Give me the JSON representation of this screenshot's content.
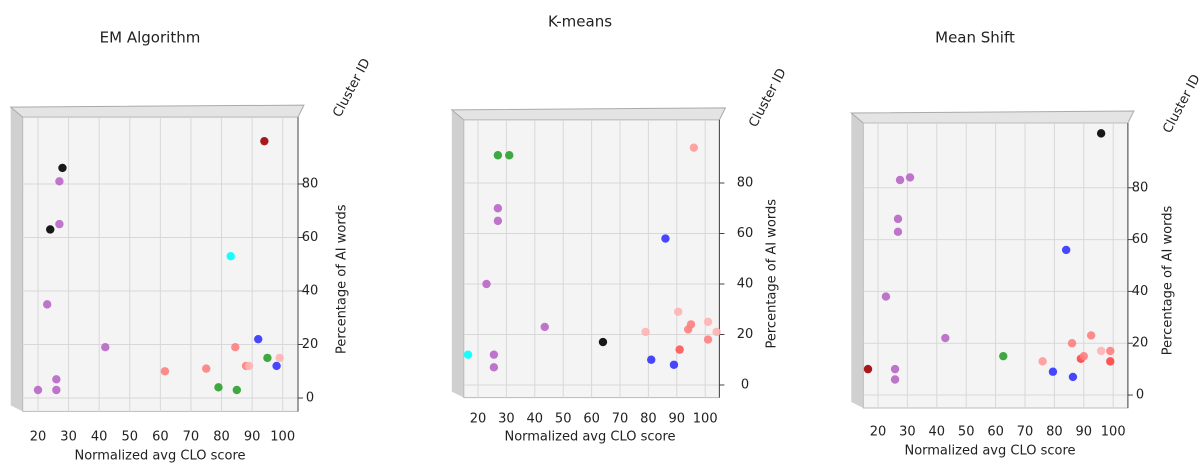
{
  "chart_data": [
    {
      "type": "scatter",
      "title": "EM Algorithm",
      "x_label": "Normalized avg CLO score",
      "y_label": "Percentage of AI words",
      "z_label": "Cluster ID",
      "x": [
        20,
        26,
        26,
        23,
        27,
        27,
        28,
        24,
        42,
        61.5,
        75,
        79,
        85,
        84.5,
        88,
        89,
        92,
        95,
        98,
        99,
        83,
        94
      ],
      "y": [
        3,
        7,
        3,
        35,
        65,
        81,
        86,
        63,
        19,
        10,
        11,
        4,
        3,
        19,
        12,
        12,
        22,
        15,
        12,
        15,
        53,
        96
      ],
      "colors": [
        "#b966c8",
        "#b966c8",
        "#b966c8",
        "#b966c8",
        "#b966c8",
        "#b966c8",
        "#000000",
        "#000000",
        "#b966c8",
        "#ff8080",
        "#ff8080",
        "#2ca02c",
        "#2ca02c",
        "#ff8080",
        "#ff8080",
        "#ffb3b3",
        "#3333ff",
        "#2ca02c",
        "#3333ff",
        "#ffb3b3",
        "#00ffff",
        "#a00000"
      ],
      "xlim": [
        15,
        105
      ],
      "ylim": [
        -5,
        105
      ],
      "xticks": [
        20,
        30,
        40,
        50,
        60,
        70,
        80,
        90,
        100
      ],
      "yticks": [
        0,
        20,
        40,
        60,
        80
      ],
      "grid": true
    },
    {
      "type": "scatter",
      "title": "K-means",
      "x_label": "Normalized avg CLO score",
      "y_label": "Percentage of AI words",
      "z_label": "Cluster ID",
      "x": [
        16.5,
        25.6,
        25.6,
        23,
        27,
        27,
        27,
        31,
        43.5,
        64,
        79,
        81,
        89,
        91,
        90.5,
        94,
        95,
        101,
        101,
        104,
        96,
        86
      ],
      "y": [
        12,
        12,
        7,
        40,
        70,
        65,
        91,
        91,
        23,
        17,
        21,
        10,
        8,
        14,
        29,
        22,
        24,
        25,
        18,
        21,
        94,
        58
      ],
      "colors": [
        "#00ffff",
        "#b966c8",
        "#b966c8",
        "#b966c8",
        "#b966c8",
        "#b966c8",
        "#2ca02c",
        "#2ca02c",
        "#b966c8",
        "#000000",
        "#ffb3b3",
        "#3333ff",
        "#3333ff",
        "#ff5555",
        "#ffb3b3",
        "#ff8080",
        "#ff8080",
        "#ffb3b3",
        "#ff8080",
        "#ffb3b3",
        "#ff9999",
        "#3333ff"
      ],
      "xlim": [
        15,
        105
      ],
      "ylim": [
        -5,
        105
      ],
      "xticks": [
        20,
        30,
        40,
        50,
        60,
        70,
        80,
        90,
        100
      ],
      "yticks": [
        0,
        20,
        40,
        60,
        80
      ],
      "grid": true
    },
    {
      "type": "scatter",
      "title": "Mean Shift",
      "x_label": "Normalized avg CLO score",
      "y_label": "Percentage of AI words",
      "z_label": "Cluster ID",
      "x": [
        16.6,
        25.8,
        25.8,
        22.7,
        26.8,
        26.8,
        27.5,
        30.9,
        42.9,
        62.6,
        76,
        79.5,
        86,
        86.3,
        89,
        90,
        92.5,
        95.9,
        99,
        99,
        84,
        95.9
      ],
      "y": [
        10,
        10,
        6,
        38,
        68,
        63,
        83,
        84,
        22,
        15,
        13,
        9,
        20,
        7,
        14,
        15,
        23,
        17,
        17,
        13,
        56,
        101
      ],
      "colors": [
        "#a00000",
        "#b966c8",
        "#b966c8",
        "#b966c8",
        "#b966c8",
        "#b966c8",
        "#b966c8",
        "#b966c8",
        "#b966c8",
        "#2ca02c",
        "#ff9999",
        "#3333ff",
        "#ff8080",
        "#3333ff",
        "#ff4444",
        "#ff8080",
        "#ff8080",
        "#ffb3b3",
        "#ff8080",
        "#ff4444",
        "#3333ff",
        "#000000"
      ],
      "xlim": [
        15,
        105
      ],
      "ylim": [
        -5,
        105
      ],
      "xticks": [
        20,
        30,
        40,
        50,
        60,
        70,
        80,
        90,
        100
      ],
      "yticks": [
        0,
        20,
        40,
        60,
        80
      ],
      "grid": true
    }
  ]
}
